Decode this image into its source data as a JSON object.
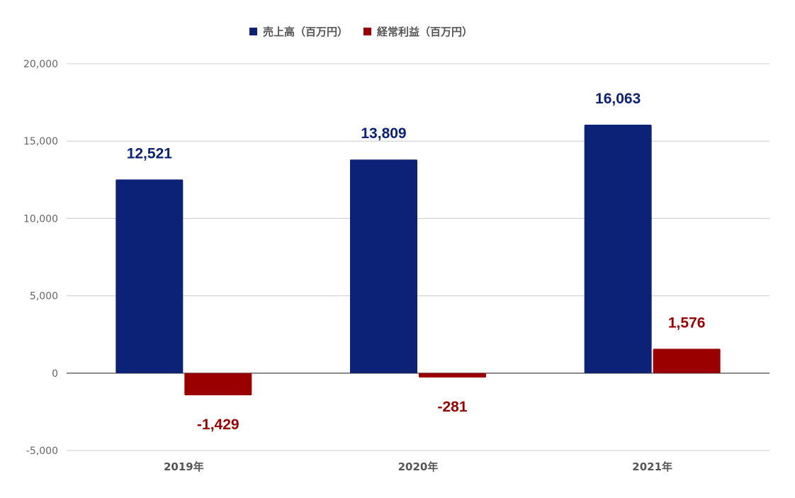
{
  "chart_data": {
    "type": "bar",
    "categories": [
      "2019年",
      "2020年",
      "2021年"
    ],
    "series": [
      {
        "name": "売上高（百万円）",
        "color": "#0b2277",
        "values": [
          12521,
          13809,
          16063
        ],
        "labels": [
          "12,521",
          "13,809",
          "16,063"
        ]
      },
      {
        "name": "経常利益（百万円）",
        "color": "#9b0000",
        "values": [
          -1429,
          -281,
          1576
        ],
        "labels": [
          "-1,429",
          "-281",
          "1,576"
        ]
      }
    ],
    "ylim": [
      -5000,
      20000
    ],
    "yticks": [
      -5000,
      0,
      5000,
      10000,
      15000,
      20000
    ],
    "ytick_labels": [
      "-5,000",
      "0",
      "5,000",
      "10,000",
      "15,000",
      "20,000"
    ],
    "grid": true,
    "legend_position": "top-center",
    "title": "",
    "xlabel": "",
    "ylabel": ""
  }
}
